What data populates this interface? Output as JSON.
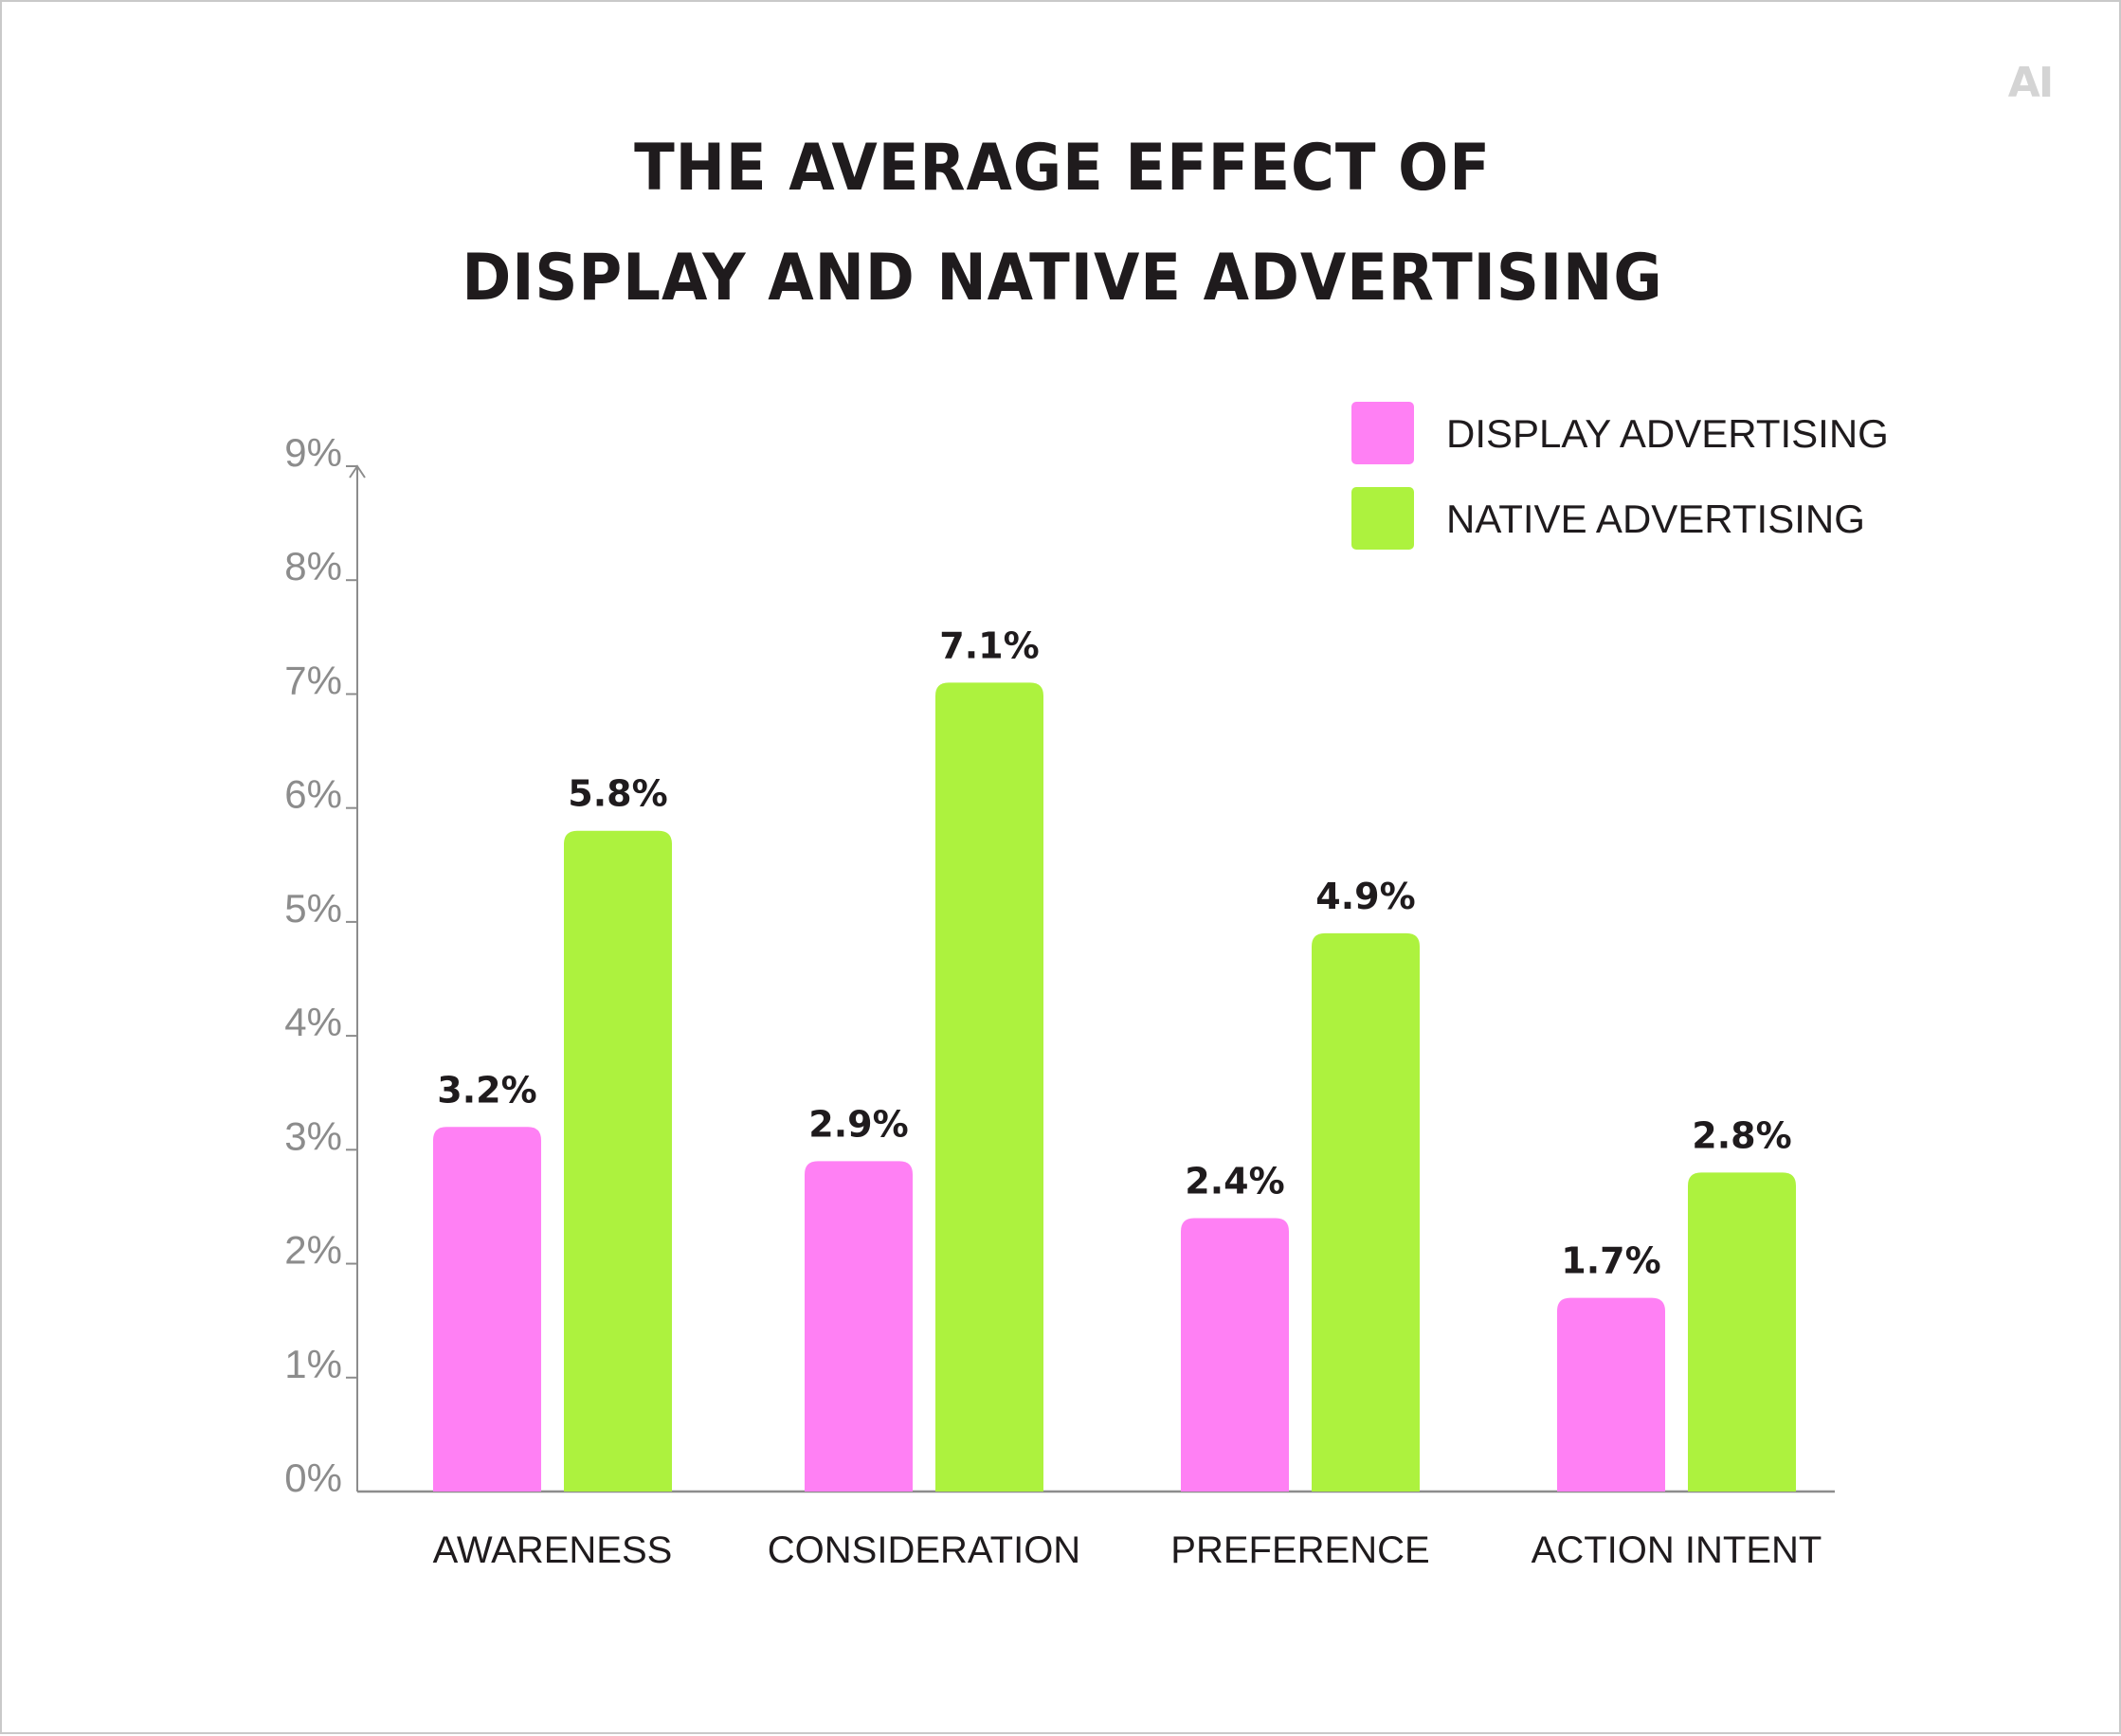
{
  "logo": "AI",
  "title_lines": [
    "THE AVERAGE EFFECT OF",
    "DISPLAY AND NATIVE ADVERTISING"
  ],
  "chart_data": {
    "type": "bar",
    "title": "THE AVERAGE EFFECT OF DISPLAY AND NATIVE ADVERTISING",
    "categories": [
      "AWARENESS",
      "CONSIDERATION",
      "PREFERENCE",
      "ACTION INTENT"
    ],
    "series": [
      {
        "name": "DISPLAY ADVERTISING",
        "color": "#ff80f4",
        "values": [
          3.2,
          2.9,
          2.4,
          1.7
        ],
        "labels": [
          "3.2%",
          "2.9%",
          "2.4%",
          "1.7%"
        ]
      },
      {
        "name": "NATIVE ADVERTISING",
        "color": "#adf23e",
        "values": [
          5.8,
          7.1,
          4.9,
          2.8
        ],
        "labels": [
          "5.8%",
          "7.1%",
          "4.9%",
          "2.8%"
        ]
      }
    ],
    "yticks": [
      "0%",
      "1%",
      "2%",
      "3%",
      "4%",
      "5%",
      "6%",
      "7%",
      "8%",
      "9%"
    ],
    "ylim": [
      0,
      9
    ],
    "xlabel": "",
    "ylabel": "",
    "legend": "top-right",
    "grid": false
  }
}
